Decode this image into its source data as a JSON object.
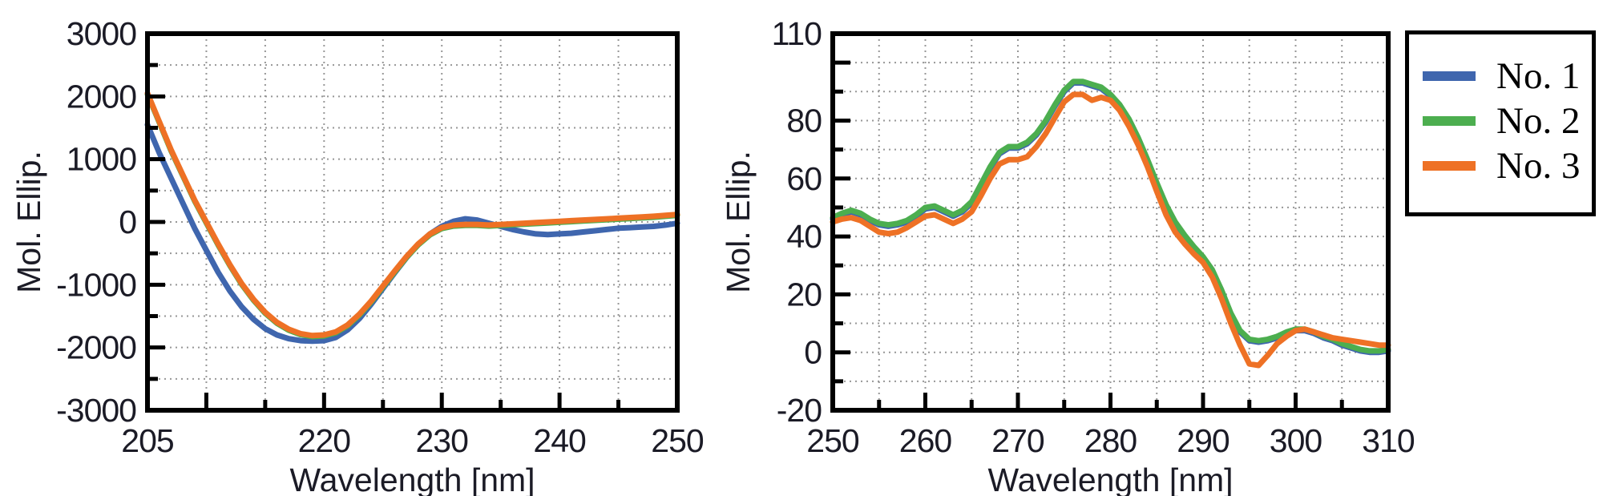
{
  "page": {
    "background": "#ffffff"
  },
  "legend": {
    "items": [
      {
        "label": "No. 1",
        "color": "#3F66AE"
      },
      {
        "label": "No. 2",
        "color": "#4CAE4F"
      },
      {
        "label": "No. 3",
        "color": "#EE7125"
      }
    ]
  },
  "chart_data": [
    {
      "type": "line",
      "title": "",
      "xlabel": "Wavelength [nm]",
      "ylabel": "Mol. Ellip.",
      "xlim": [
        205,
        250
      ],
      "ylim": [
        -3000,
        3000
      ],
      "x_tick_labels": [
        "205",
        "220",
        "230",
        "240",
        "250"
      ],
      "x_tick_values": [
        205,
        220,
        230,
        240,
        250
      ],
      "x_major_tick_step": 10,
      "x_minor_tick_step": 5,
      "y_tick_labels": [
        "3000",
        "2000",
        "1000",
        "0",
        "-1000",
        "-2000",
        "-3000"
      ],
      "y_tick_values": [
        3000,
        2000,
        1000,
        0,
        -1000,
        -2000,
        -3000
      ],
      "y_major_tick_step": 1000,
      "y_minor_tick_step": 500,
      "grid_x_step": 5,
      "grid_y_step": 500,
      "grid_on": true,
      "legend_position": "outside-right",
      "x_start": 205,
      "x_step": 1,
      "series": [
        {
          "name": "No. 1",
          "color": "#3F66AE",
          "values": [
            1550,
            1100,
            700,
            300,
            -100,
            -450,
            -800,
            -1100,
            -1350,
            -1550,
            -1700,
            -1800,
            -1860,
            -1890,
            -1900,
            -1890,
            -1840,
            -1720,
            -1540,
            -1310,
            -1060,
            -810,
            -570,
            -360,
            -190,
            -70,
            10,
            50,
            30,
            -20,
            -70,
            -120,
            -160,
            -190,
            -200,
            -190,
            -180,
            -160,
            -140,
            -120,
            -100,
            -90,
            -80,
            -70,
            -50,
            -20
          ]
        },
        {
          "name": "No. 2",
          "color": "#4CAE4F",
          "values": [
            2035,
            1585,
            1135,
            735,
            335,
            -15,
            -365,
            -695,
            -995,
            -1245,
            -1455,
            -1615,
            -1725,
            -1795,
            -1825,
            -1815,
            -1765,
            -1655,
            -1485,
            -1275,
            -1035,
            -795,
            -565,
            -365,
            -205,
            -105,
            -65,
            -55,
            -55,
            -65,
            -55,
            -45,
            -35,
            -25,
            -15,
            -5,
            5,
            15,
            25,
            35,
            45,
            55,
            65,
            75,
            90,
            105
          ]
        },
        {
          "name": "No. 3",
          "color": "#EE7125",
          "values": [
            2050,
            1600,
            1150,
            750,
            350,
            0,
            -350,
            -680,
            -980,
            -1230,
            -1440,
            -1600,
            -1710,
            -1780,
            -1810,
            -1800,
            -1750,
            -1640,
            -1470,
            -1260,
            -1020,
            -780,
            -550,
            -350,
            -190,
            -90,
            -50,
            -40,
            -40,
            -50,
            -40,
            -30,
            -20,
            -10,
            0,
            10,
            20,
            30,
            40,
            50,
            60,
            70,
            80,
            90,
            105,
            120
          ]
        }
      ]
    },
    {
      "type": "line",
      "title": "",
      "xlabel": "Wavelength [nm]",
      "ylabel": "Mol. Ellip.",
      "xlim": [
        250,
        310
      ],
      "ylim": [
        -20,
        110
      ],
      "x_tick_labels": [
        "250",
        "260",
        "270",
        "280",
        "290",
        "300",
        "310"
      ],
      "x_tick_values": [
        250,
        260,
        270,
        280,
        290,
        300,
        310
      ],
      "x_major_tick_step": 10,
      "x_minor_tick_step": 5,
      "y_tick_labels": [
        "110",
        "80",
        "60",
        "40",
        "20",
        "0",
        "-20"
      ],
      "y_tick_values": [
        110,
        80,
        60,
        40,
        20,
        0,
        -20
      ],
      "y_major_tick_step": 20,
      "y_minor_tick_step": 10,
      "grid_x_step": 5,
      "grid_y_step": 10,
      "grid_on": true,
      "legend_position": "outside-right",
      "x_start": 250,
      "x_step": 1,
      "series": [
        {
          "name": "No. 1",
          "color": "#3F66AE",
          "values": [
            46,
            47.5,
            48.5,
            47.5,
            45.5,
            44,
            43.5,
            44,
            45,
            47,
            49.5,
            50,
            48.5,
            47,
            48.5,
            51.5,
            57.5,
            63.5,
            68.5,
            70.5,
            70.5,
            72,
            75,
            79.5,
            85,
            90,
            93,
            93,
            92,
            91,
            88.5,
            85,
            80,
            73.5,
            66,
            58,
            50.5,
            44.5,
            40,
            36,
            32.5,
            28,
            21,
            13,
            7,
            4,
            3.5,
            4,
            5,
            6.5,
            7.5,
            7.5,
            6.5,
            5,
            4,
            2.5,
            1.5,
            0.5,
            0,
            0,
            0.5
          ]
        },
        {
          "name": "No. 2",
          "color": "#4CAE4F",
          "values": [
            46.5,
            48,
            49,
            48,
            46,
            44.5,
            44,
            44.5,
            45.5,
            47.5,
            50,
            50.5,
            49,
            47.5,
            49,
            52,
            58,
            64,
            69,
            71,
            71,
            72.5,
            75.5,
            80,
            85.5,
            90.5,
            93.5,
            93.5,
            92.5,
            91.5,
            89,
            85.5,
            80.5,
            74,
            66.5,
            58.5,
            51,
            45,
            40.5,
            36.5,
            33,
            28.5,
            21.5,
            13.5,
            7.5,
            4.5,
            4,
            4.5,
            5.5,
            7,
            8,
            8,
            7,
            5.5,
            4.5,
            3,
            2,
            1,
            0.5,
            0.5,
            1
          ]
        },
        {
          "name": "No. 3",
          "color": "#EE7125",
          "values": [
            45,
            46,
            46.5,
            45.5,
            43.5,
            41.5,
            41,
            41.5,
            43,
            45,
            47,
            47.5,
            46,
            44.5,
            46,
            48.5,
            54,
            60,
            65,
            66.5,
            66.5,
            67.5,
            71,
            75.5,
            81,
            86.5,
            89,
            89,
            87,
            88,
            87,
            83.5,
            78,
            71.5,
            64,
            55.5,
            47.5,
            41.5,
            37.5,
            34,
            31,
            26,
            18.5,
            10,
            2.5,
            -4,
            -4.5,
            -1,
            3,
            5.5,
            7.5,
            8,
            7,
            6,
            5,
            4.5,
            4,
            3.5,
            3,
            2.5,
            2.5
          ]
        }
      ]
    }
  ]
}
